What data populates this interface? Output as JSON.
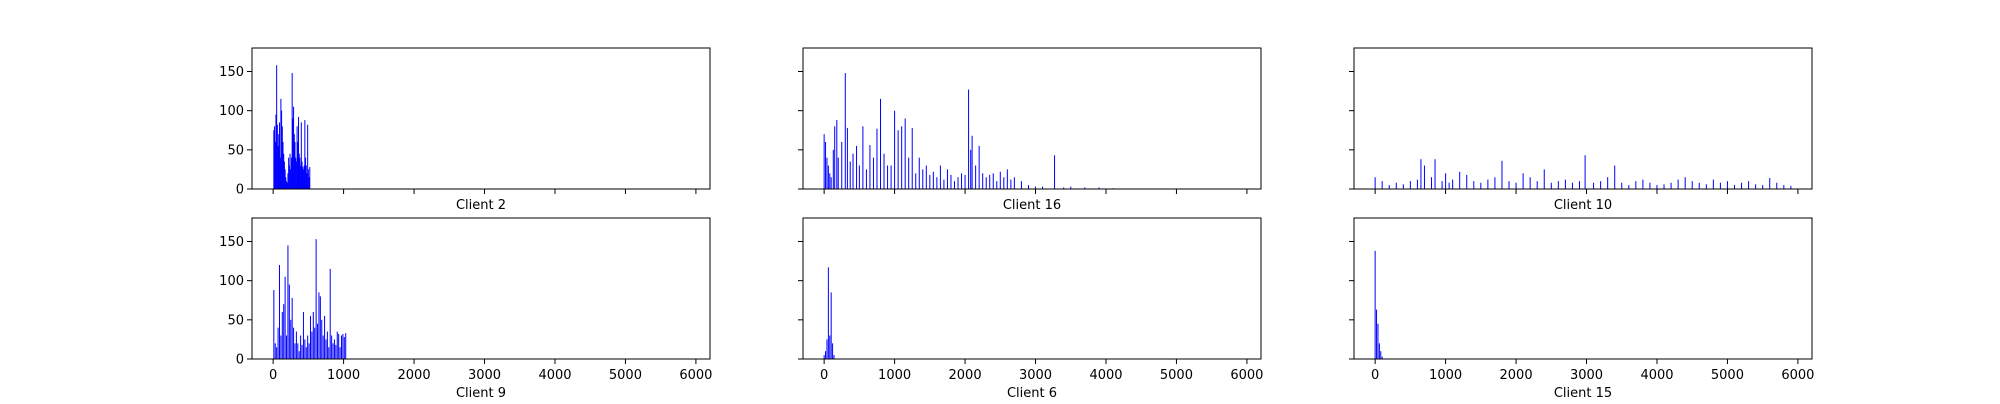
{
  "figure": {
    "background": "#ffffff",
    "bar_color": "#0000ff",
    "panel_edge_color": "#000000"
  },
  "chart_data": [
    {
      "type": "bar",
      "title": "Client 2",
      "xlim": [
        -300,
        6200
      ],
      "ylim": [
        0,
        180
      ],
      "xticks": [
        0,
        1000,
        2000,
        3000,
        4000,
        5000,
        6000
      ],
      "yticks": [
        0,
        50,
        100,
        150
      ],
      "show_xticklabels": false,
      "show_yticklabels": true,
      "bar_width": 10,
      "x": [
        10,
        20,
        30,
        40,
        50,
        60,
        70,
        80,
        90,
        100,
        110,
        120,
        130,
        140,
        150,
        160,
        170,
        180,
        190,
        200,
        210,
        220,
        230,
        240,
        250,
        260,
        270,
        280,
        290,
        300,
        310,
        320,
        330,
        340,
        350,
        360,
        370,
        380,
        390,
        400,
        410,
        420,
        430,
        440,
        450,
        460,
        470,
        480,
        490,
        500,
        510,
        520
      ],
      "values": [
        75,
        80,
        60,
        95,
        158,
        82,
        55,
        70,
        85,
        40,
        115,
        100,
        80,
        60,
        45,
        35,
        25,
        15,
        10,
        8,
        20,
        40,
        30,
        45,
        25,
        40,
        148,
        90,
        105,
        70,
        60,
        40,
        35,
        80,
        60,
        92,
        45,
        40,
        30,
        85,
        35,
        28,
        25,
        30,
        88,
        40,
        30,
        20,
        82,
        25,
        15,
        28
      ]
    },
    {
      "type": "bar",
      "title": "Client 16",
      "xlim": [
        -300,
        6200
      ],
      "ylim": [
        0,
        180
      ],
      "xticks": [
        0,
        1000,
        2000,
        3000,
        4000,
        5000,
        6000
      ],
      "yticks": [
        0,
        50,
        100,
        150
      ],
      "show_xticklabels": false,
      "show_yticklabels": false,
      "bar_width": 14,
      "x": [
        0,
        20,
        40,
        60,
        80,
        100,
        130,
        150,
        180,
        200,
        250,
        300,
        330,
        370,
        410,
        460,
        500,
        550,
        600,
        650,
        700,
        750,
        800,
        850,
        900,
        950,
        1000,
        1050,
        1100,
        1150,
        1200,
        1250,
        1300,
        1350,
        1400,
        1450,
        1500,
        1550,
        1600,
        1650,
        1700,
        1750,
        1800,
        1850,
        1900,
        1950,
        2000,
        2050,
        2080,
        2100,
        2150,
        2200,
        2250,
        2300,
        2350,
        2400,
        2450,
        2500,
        2550,
        2600,
        2650,
        2700,
        2800,
        2900,
        3000,
        3100,
        3270,
        3400,
        3500,
        3700,
        3900,
        4100
      ],
      "values": [
        70,
        60,
        40,
        30,
        20,
        15,
        50,
        80,
        88,
        40,
        60,
        148,
        78,
        35,
        45,
        55,
        30,
        80,
        25,
        56,
        40,
        77,
        115,
        45,
        30,
        30,
        100,
        75,
        80,
        90,
        40,
        78,
        20,
        40,
        25,
        30,
        18,
        22,
        15,
        30,
        12,
        25,
        18,
        10,
        15,
        20,
        18,
        127,
        50,
        68,
        30,
        55,
        20,
        15,
        18,
        20,
        10,
        22,
        15,
        25,
        12,
        15,
        10,
        5,
        3,
        3,
        43,
        2,
        3,
        2,
        2,
        1
      ]
    },
    {
      "type": "bar",
      "title": "Client 10",
      "xlim": [
        -300,
        6200
      ],
      "ylim": [
        0,
        180
      ],
      "xticks": [
        0,
        1000,
        2000,
        3000,
        4000,
        5000,
        6000
      ],
      "yticks": [
        0,
        50,
        100,
        150
      ],
      "show_xticklabels": false,
      "show_yticklabels": false,
      "bar_width": 14,
      "x": [
        0,
        100,
        200,
        300,
        400,
        500,
        600,
        650,
        700,
        800,
        850,
        950,
        1000,
        1050,
        1100,
        1200,
        1300,
        1400,
        1500,
        1600,
        1700,
        1800,
        1900,
        2000,
        2100,
        2200,
        2300,
        2400,
        2500,
        2600,
        2700,
        2800,
        2900,
        2980,
        3100,
        3200,
        3300,
        3400,
        3500,
        3600,
        3700,
        3800,
        3900,
        4000,
        4100,
        4200,
        4300,
        4400,
        4500,
        4600,
        4700,
        4800,
        4900,
        5000,
        5100,
        5200,
        5300,
        5400,
        5500,
        5600,
        5700,
        5800,
        5900
      ],
      "values": [
        15,
        10,
        5,
        8,
        6,
        10,
        12,
        38,
        30,
        15,
        38,
        10,
        20,
        8,
        12,
        22,
        18,
        10,
        8,
        12,
        15,
        36,
        10,
        8,
        20,
        15,
        10,
        25,
        8,
        10,
        12,
        8,
        10,
        43,
        8,
        10,
        15,
        30,
        8,
        5,
        10,
        12,
        8,
        5,
        6,
        8,
        12,
        15,
        10,
        8,
        6,
        12,
        8,
        10,
        5,
        8,
        10,
        6,
        5,
        14,
        8,
        5,
        4
      ]
    },
    {
      "type": "bar",
      "title": "Client 9",
      "xlim": [
        -300,
        6200
      ],
      "ylim": [
        0,
        180
      ],
      "xticks": [
        0,
        1000,
        2000,
        3000,
        4000,
        5000,
        6000
      ],
      "yticks": [
        0,
        50,
        100,
        150
      ],
      "show_xticklabels": true,
      "show_yticklabels": true,
      "bar_width": 10,
      "x": [
        10,
        30,
        50,
        70,
        90,
        110,
        130,
        150,
        170,
        190,
        210,
        230,
        250,
        270,
        290,
        310,
        330,
        350,
        370,
        390,
        410,
        430,
        450,
        470,
        490,
        510,
        530,
        550,
        570,
        590,
        610,
        630,
        650,
        670,
        690,
        710,
        730,
        750,
        770,
        790,
        810,
        830,
        850,
        870,
        890,
        910,
        930,
        950,
        970,
        990,
        1010,
        1030
      ],
      "values": [
        88,
        20,
        15,
        40,
        120,
        30,
        60,
        70,
        105,
        30,
        145,
        95,
        50,
        78,
        40,
        20,
        35,
        20,
        10,
        30,
        18,
        60,
        25,
        15,
        30,
        20,
        55,
        35,
        60,
        40,
        153,
        45,
        85,
        80,
        50,
        30,
        55,
        25,
        35,
        15,
        115,
        30,
        20,
        25,
        18,
        35,
        32,
        15,
        30,
        32,
        28,
        33
      ]
    },
    {
      "type": "bar",
      "title": "Client 6",
      "xlim": [
        -300,
        6200
      ],
      "ylim": [
        0,
        180
      ],
      "xticks": [
        0,
        1000,
        2000,
        3000,
        4000,
        5000,
        6000
      ],
      "yticks": [
        0,
        50,
        100,
        150
      ],
      "show_xticklabels": true,
      "show_yticklabels": false,
      "bar_width": 14,
      "x": [
        0,
        20,
        40,
        60,
        80,
        100,
        120,
        140
      ],
      "values": [
        5,
        10,
        25,
        117,
        30,
        85,
        20,
        5
      ]
    },
    {
      "type": "bar",
      "title": "Client 15",
      "xlim": [
        -300,
        6200
      ],
      "ylim": [
        0,
        180
      ],
      "xticks": [
        0,
        1000,
        2000,
        3000,
        4000,
        5000,
        6000
      ],
      "yticks": [
        0,
        50,
        100,
        150
      ],
      "show_xticklabels": true,
      "show_yticklabels": false,
      "bar_width": 14,
      "x": [
        0,
        20,
        40,
        60,
        80,
        100
      ],
      "values": [
        138,
        63,
        45,
        20,
        10,
        3
      ]
    }
  ]
}
